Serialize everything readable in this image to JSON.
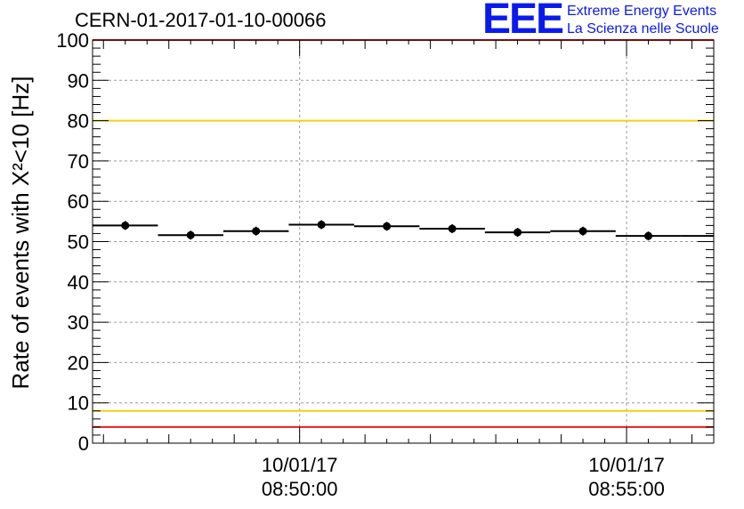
{
  "title": "CERN-01-2017-01-10-00066",
  "logo": {
    "mark": "EEE",
    "line1": "Extreme Energy Events",
    "line2": "La Scienza nelle Scuole"
  },
  "chart_data": {
    "type": "scatter",
    "title": "CERN-01-2017-01-10-00066",
    "ylabel": "Rate of events with X²<10 [Hz]",
    "xlabel": "",
    "ylim": [
      0,
      100
    ],
    "yticks": [
      0,
      10,
      20,
      30,
      40,
      50,
      60,
      70,
      80,
      90,
      100
    ],
    "xlim": [
      "08:46:50",
      "08:56:20"
    ],
    "x_tick_labels": [
      {
        "date": "10/01/17",
        "time": "08:50:00"
      },
      {
        "date": "10/01/17",
        "time": "08:55:00"
      }
    ],
    "grid": true,
    "series": [
      {
        "x_start": [
          "08:46:50",
          "08:47:50",
          "08:48:50",
          "08:49:50",
          "08:50:50",
          "08:51:50",
          "08:52:50",
          "08:53:50",
          "08:54:50",
          "08:55:50"
        ],
        "x_center": [
          "08:47:20",
          "08:48:20",
          "08:49:20",
          "08:50:20",
          "08:51:20",
          "08:52:20",
          "08:53:20",
          "08:54:20",
          "08:55:20",
          "08:56:20"
        ],
        "values": [
          54.0,
          51.6,
          52.6,
          54.2,
          53.8,
          53.2,
          52.3,
          52.6,
          51.4,
          51.4
        ]
      }
    ],
    "reference_lines": [
      {
        "y": 100,
        "color": "#ee1c1c"
      },
      {
        "y": 80,
        "color": "#f2cf1b"
      },
      {
        "y": 8,
        "color": "#f2cf1b"
      },
      {
        "y": 4,
        "color": "#ee1c1c"
      }
    ],
    "colors": {
      "marker": "#000000",
      "grid": "#9a9a9a"
    }
  }
}
